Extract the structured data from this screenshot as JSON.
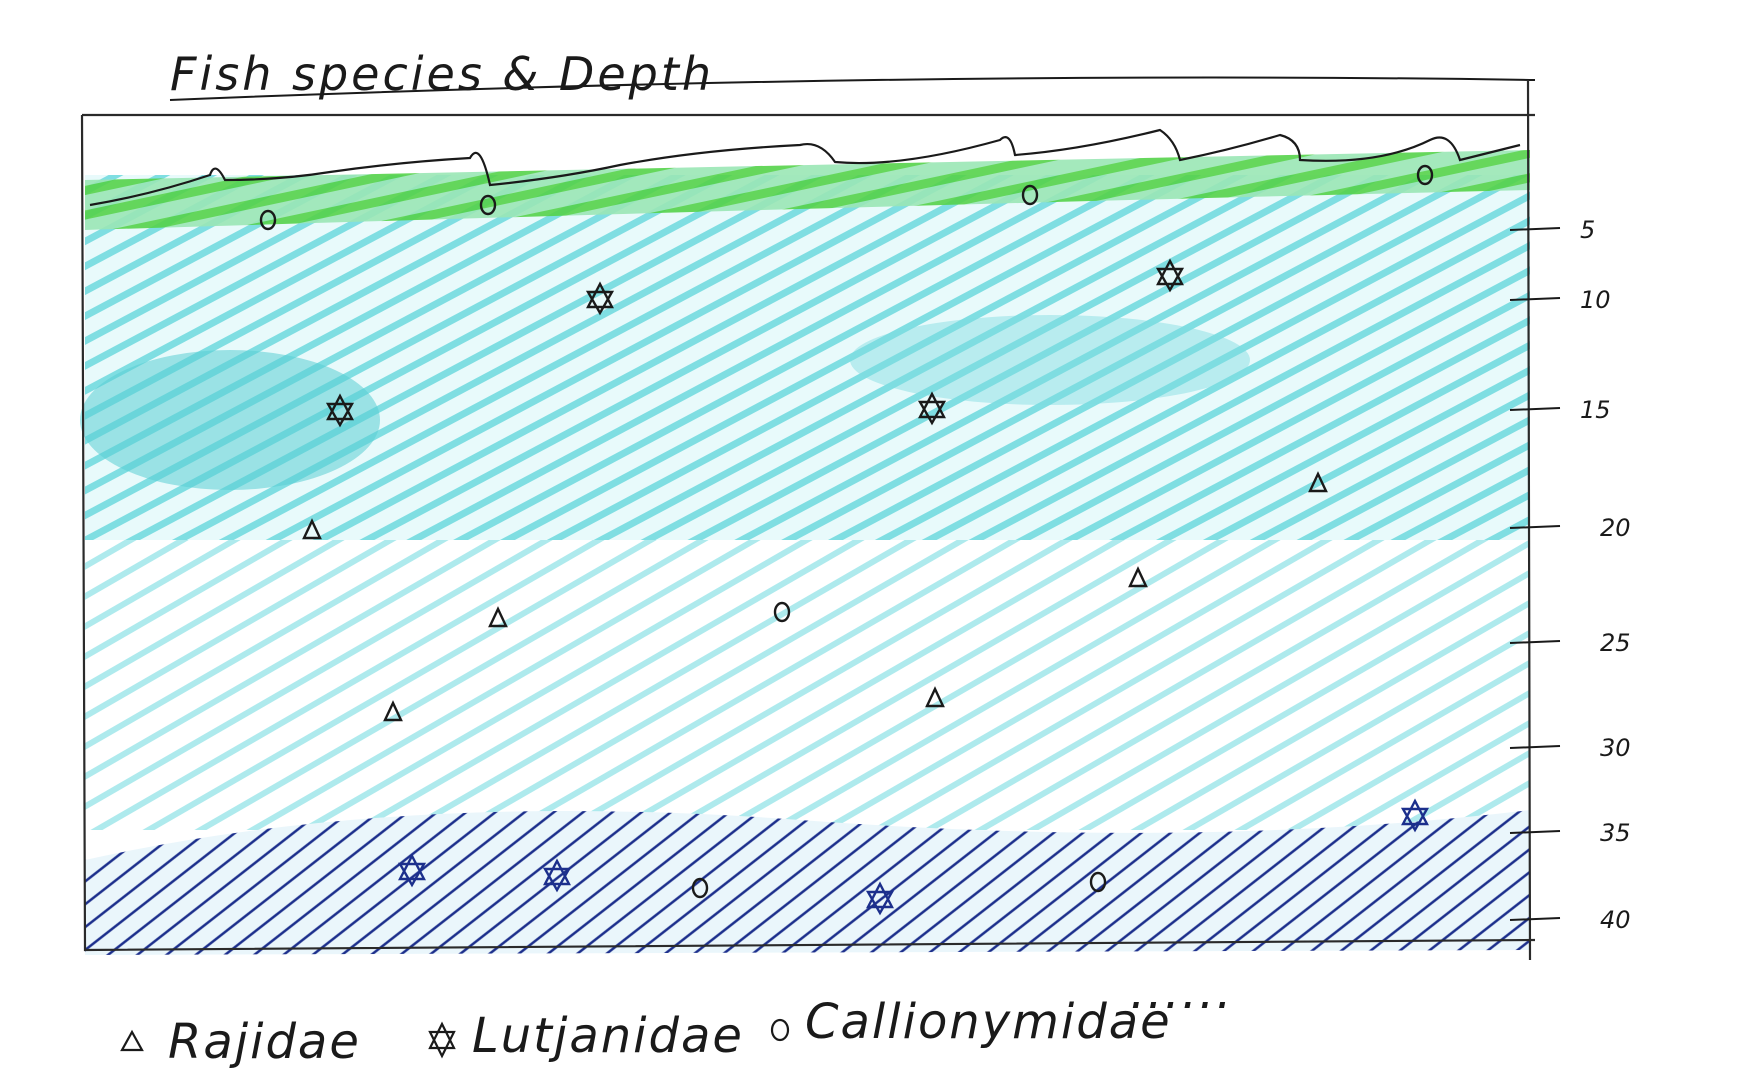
{
  "title": "Fish species & Depth",
  "depth_axis": {
    "ticks": [
      "5",
      "10",
      "15",
      "20",
      "25",
      "30",
      "35",
      "40"
    ]
  },
  "legend": {
    "items": [
      {
        "symbol": "triangle",
        "label": "Rajidae"
      },
      {
        "symbol": "star",
        "label": "Lutjanidae"
      },
      {
        "symbol": "circle",
        "label": "Callionymidae"
      }
    ],
    "trailing": "......"
  },
  "colors": {
    "surface_green": "#55d24a",
    "water_cyan": "#5fd3d8",
    "seabed_navy": "#1c2f8c",
    "ink": "#1a1a1a"
  },
  "zones": [
    "surface",
    "open water",
    "seabed"
  ]
}
